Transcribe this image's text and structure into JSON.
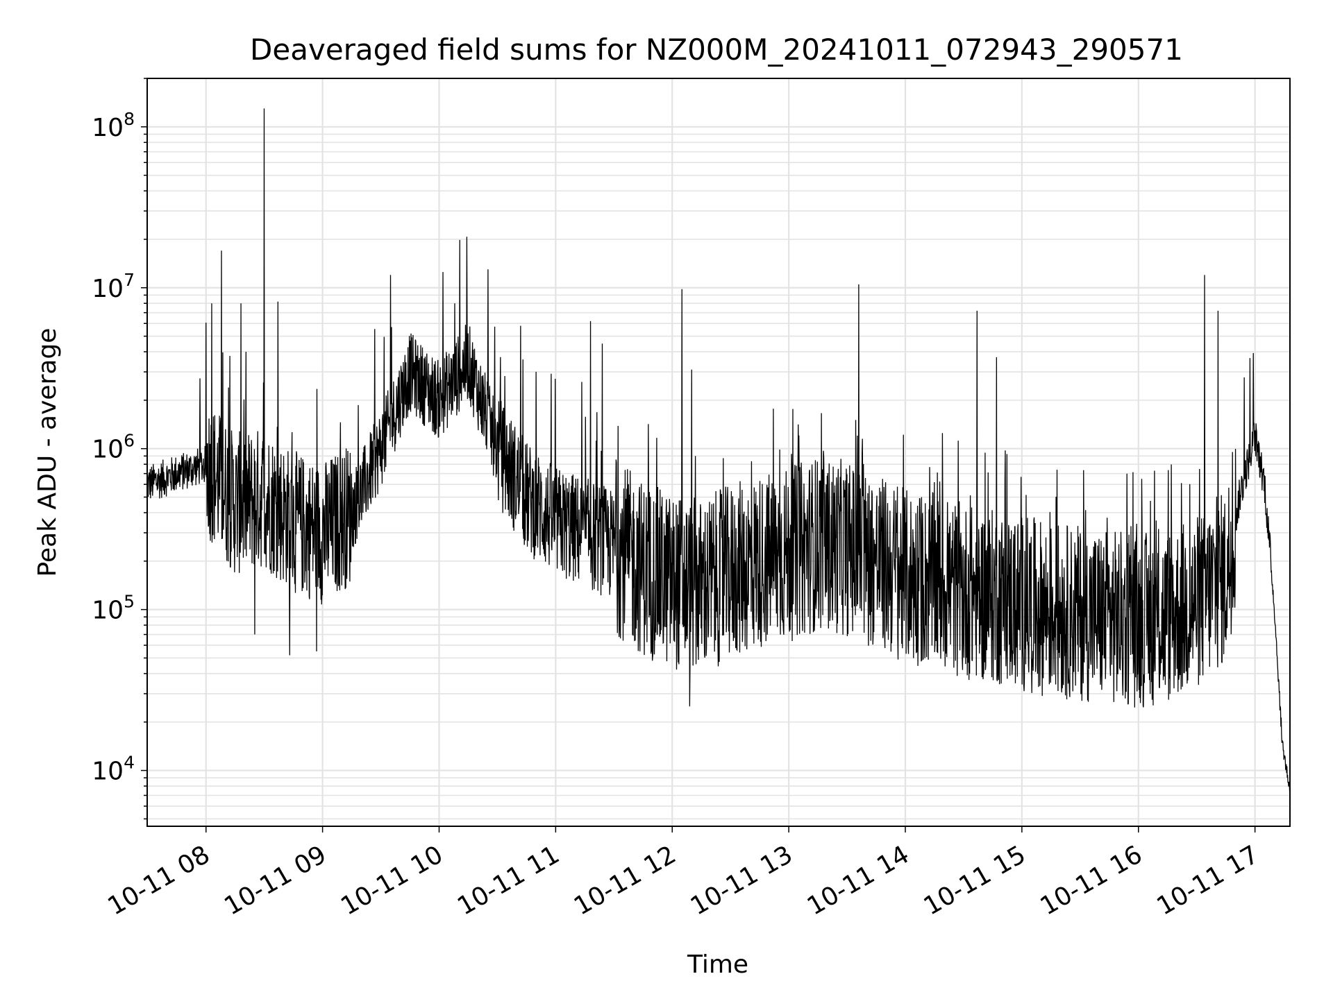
{
  "chart_data": {
    "type": "line",
    "title": "Deaveraged field sums for NZ000M_20241011_072943_290571",
    "xlabel": "Time",
    "ylabel": "Peak ADU - average",
    "y_scale": "log",
    "xlim": [
      "10-11 07:29:43",
      "10-11 17:18"
    ],
    "ylim": [
      4500,
      200000000
    ],
    "x_ticks": [
      "10-11 08",
      "10-11 09",
      "10-11 10",
      "10-11 11",
      "10-11 12",
      "10-11 13",
      "10-11 14",
      "10-11 15",
      "10-11 16",
      "10-11 17"
    ],
    "y_ticks": [
      {
        "base": "10",
        "exp": "4",
        "value": 10000
      },
      {
        "base": "10",
        "exp": "5",
        "value": 100000
      },
      {
        "base": "10",
        "exp": "6",
        "value": 1000000
      },
      {
        "base": "10",
        "exp": "7",
        "value": 10000000
      },
      {
        "base": "10",
        "exp": "8",
        "value": 100000000
      }
    ],
    "grid": true,
    "line_color": "#000000",
    "series": [
      {
        "x": [
          "10-11 07:30",
          "10-11 07:45",
          "10-11 08:00",
          "10-11 08:15",
          "10-11 08:30",
          "10-11 08:45",
          "10-11 09:00",
          "10-11 09:15",
          "10-11 09:30",
          "10-11 09:45",
          "10-11 10:00",
          "10-11 10:15",
          "10-11 10:30",
          "10-11 10:45",
          "10-11 11:00",
          "10-11 11:15",
          "10-11 11:30",
          "10-11 11:45",
          "10-11 12:00",
          "10-11 12:15",
          "10-11 12:30",
          "10-11 12:45",
          "10-11 13:00",
          "10-11 13:15",
          "10-11 13:30",
          "10-11 13:45",
          "10-11 14:00",
          "10-11 14:15",
          "10-11 14:30",
          "10-11 14:45",
          "10-11 15:00",
          "10-11 15:15",
          "10-11 15:30",
          "10-11 15:45",
          "10-11 16:00",
          "10-11 16:15",
          "10-11 16:30",
          "10-11 16:45",
          "10-11 16:52",
          "10-11 17:00",
          "10-11 17:05",
          "10-11 17:10",
          "10-11 17:14",
          "10-11 17:18"
        ],
        "values": [
          600000,
          700000,
          800000,
          450000,
          500000,
          350000,
          300000,
          400000,
          1000000,
          3000000,
          2000000,
          3500000,
          1000000,
          500000,
          350000,
          300000,
          250000,
          180000,
          150000,
          140000,
          170000,
          200000,
          220000,
          260000,
          240000,
          200000,
          160000,
          150000,
          130000,
          120000,
          110000,
          100000,
          95000,
          90000,
          85000,
          90000,
          110000,
          160000,
          500000,
          1200000,
          600000,
          100000,
          15000,
          7500
        ]
      }
    ],
    "spikes": [
      {
        "x": "10-11 08:03",
        "value": 8000000
      },
      {
        "x": "10-11 08:08",
        "value": 17000000
      },
      {
        "x": "10-11 08:18",
        "value": 8000000
      },
      {
        "x": "10-11 08:25",
        "value": 5500000
      },
      {
        "x": "10-11 08:30",
        "value": 130000000
      },
      {
        "x": "10-11 08:37",
        "value": 8200000
      },
      {
        "x": "10-11 09:35",
        "value": 12000000
      },
      {
        "x": "10-11 10:08",
        "value": 8000000
      },
      {
        "x": "10-11 10:42",
        "value": 5800000
      },
      {
        "x": "10-11 11:18",
        "value": 6200000
      },
      {
        "x": "10-11 11:24",
        "value": 4500000
      },
      {
        "x": "10-11 12:05",
        "value": 9800000
      },
      {
        "x": "10-11 12:10",
        "value": 3100000
      },
      {
        "x": "10-11 13:36",
        "value": 10500000
      },
      {
        "x": "10-11 14:37",
        "value": 7200000
      },
      {
        "x": "10-11 14:47",
        "value": 3700000
      },
      {
        "x": "10-11 16:34",
        "value": 12000000
      },
      {
        "x": "10-11 16:41",
        "value": 7200000
      }
    ],
    "dips": [
      {
        "x": "10-11 08:25",
        "value": 70000
      },
      {
        "x": "10-11 08:43",
        "value": 52000
      },
      {
        "x": "10-11 08:57",
        "value": 55000
      },
      {
        "x": "10-11 12:09",
        "value": 25000
      },
      {
        "x": "10-11 15:43",
        "value": 37000
      },
      {
        "x": "10-11 16:03",
        "value": 35000
      }
    ]
  }
}
